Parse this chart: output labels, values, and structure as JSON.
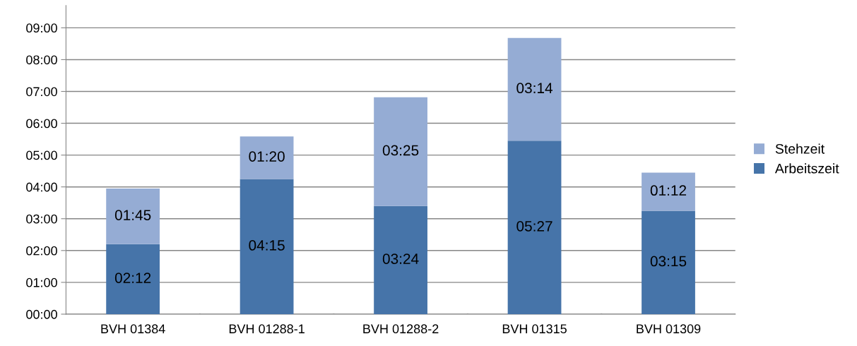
{
  "chart_data": {
    "type": "bar",
    "stacked": true,
    "categories": [
      "BVH 01384",
      "BVH 01288-1",
      "BVH 01288-2",
      "BVH 01315",
      "BVH 01309"
    ],
    "series": [
      {
        "name": "Arbeitszeit",
        "color": "#4674a9",
        "values": [
          2.2,
          4.25,
          3.4,
          5.45,
          3.25
        ],
        "value_labels": [
          "02:12",
          "04:15",
          "03:24",
          "05:27",
          "03:15"
        ]
      },
      {
        "name": "Stehzeit",
        "color": "#95acd4",
        "values": [
          1.75,
          1.3333,
          3.4167,
          3.2333,
          1.2
        ],
        "value_labels": [
          "01:45",
          "01:20",
          "03:25",
          "03:14",
          "01:12"
        ]
      }
    ],
    "ylim": [
      0,
      9.7
    ],
    "yticks": [
      {
        "value": 0,
        "label": "00:00"
      },
      {
        "value": 1,
        "label": "01:00"
      },
      {
        "value": 2,
        "label": "02:00"
      },
      {
        "value": 3,
        "label": "03:00"
      },
      {
        "value": 4,
        "label": "04:00"
      },
      {
        "value": 5,
        "label": "05:00"
      },
      {
        "value": 6,
        "label": "06:00"
      },
      {
        "value": 7,
        "label": "07:00"
      },
      {
        "value": 8,
        "label": "08:00"
      },
      {
        "value": 9,
        "label": "09:00"
      }
    ],
    "grid": "y",
    "legend": "right"
  }
}
